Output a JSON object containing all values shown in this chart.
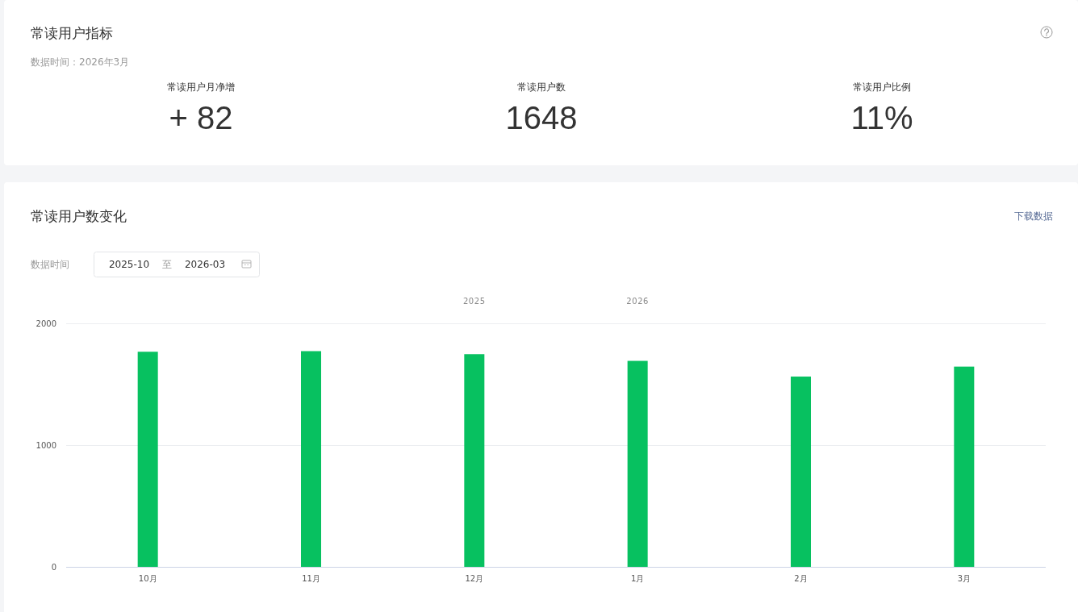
{
  "chart_data": [
    {
      "type": "other",
      "title": "常读用户指标",
      "subtitle": "数据时间：2026年3月",
      "categories": [
        "常读用户月净增",
        "常读用户数",
        "常读用户比例"
      ],
      "value_labels": [
        "+ 82",
        "1648",
        "11%"
      ]
    },
    {
      "type": "bar",
      "title": "常读用户数变化",
      "categories": [
        "10月",
        "11月",
        "12月",
        "1月",
        "2月",
        "3月"
      ],
      "values": [
        1770,
        1775,
        1750,
        1695,
        1566,
        1648
      ],
      "color": "#07c160",
      "ylim": [
        0,
        2000
      ],
      "yticks": [
        0,
        1000,
        2000
      ],
      "grid": "y",
      "annotations": [
        "下载数据",
        "数据时间",
        "2025-10",
        "至",
        "2026-03",
        "2025",
        "2026"
      ]
    }
  ]
}
